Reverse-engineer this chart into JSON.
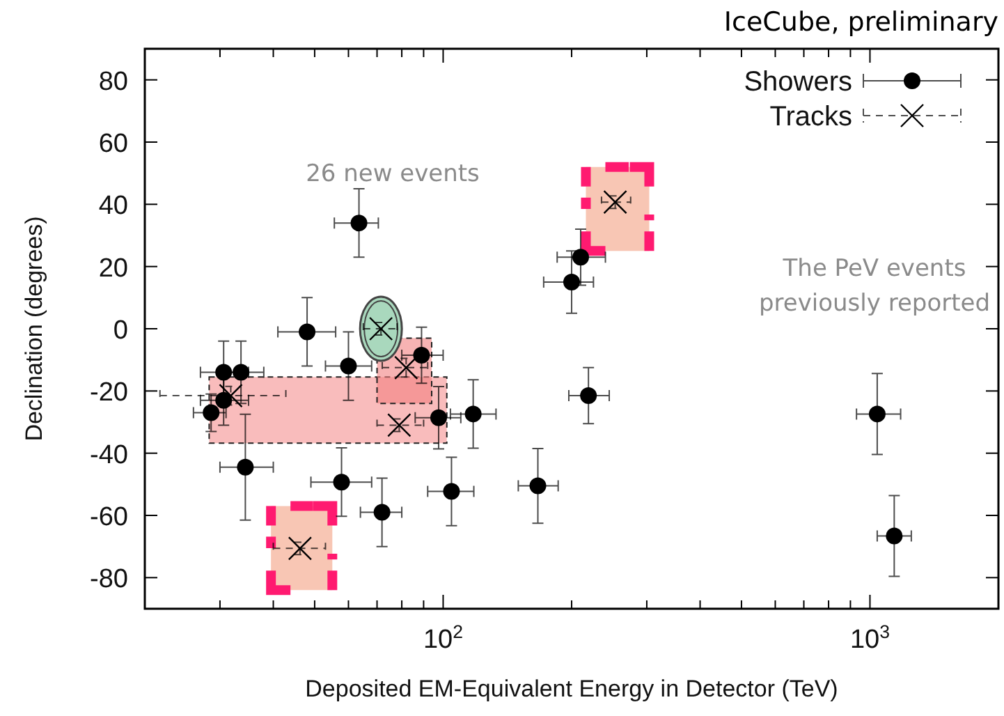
{
  "chart_data": {
    "type": "scatter",
    "xlabel": "Deposited EM-Equivalent Energy in Detector (TeV)",
    "ylabel": "Declination (degrees)",
    "log": "x",
    "xlim": [
      20,
      2000
    ],
    "ylim": [
      -90,
      90
    ],
    "xticks": [
      {
        "value": 20,
        "label": null
      },
      {
        "value": 30,
        "label": null
      },
      {
        "value": 40,
        "label": null
      },
      {
        "value": 50,
        "label": null
      },
      {
        "value": 60,
        "label": null
      },
      {
        "value": 70,
        "label": null
      },
      {
        "value": 80,
        "label": null
      },
      {
        "value": 90,
        "label": null
      },
      {
        "value": 100,
        "label": "10$^{2}$"
      },
      {
        "value": 200,
        "label": null
      },
      {
        "value": 300,
        "label": null
      },
      {
        "value": 400,
        "label": null
      },
      {
        "value": 500,
        "label": null
      },
      {
        "value": 600,
        "label": null
      },
      {
        "value": 700,
        "label": null
      },
      {
        "value": 800,
        "label": null
      },
      {
        "value": 900,
        "label": null
      },
      {
        "value": 1000,
        "label": "10$^{3}$"
      },
      {
        "value": 2000,
        "label": null
      }
    ],
    "yticks": [
      -80,
      -60,
      -40,
      -20,
      0,
      20,
      40,
      60,
      80
    ],
    "grid": false,
    "legend": "top right",
    "annotations": [
      "26 new events",
      "The PeV events previously reported",
      "IceCube, preliminary"
    ],
    "series": [
      {
        "name": "Showers",
        "color": "#000000",
        "marker": "circle",
        "line_style": "solid",
        "x": [
          63.5,
          48,
          210,
          200,
          60,
          89,
          30.6,
          33.6,
          30.6,
          28.6,
          97.6,
          117.6,
          34.4,
          57.8,
          71.9,
          104.6,
          166.7,
          219,
          1040,
          1140
        ],
        "values": [
          34,
          -1,
          23,
          15,
          -12,
          -8.5,
          -14,
          -14,
          -23,
          -27,
          -28.6,
          -27.4,
          -44.5,
          -49.3,
          -59,
          -52.3,
          -50.5,
          -21.5,
          -27.4,
          -66.6
        ],
        "errors": [
          11,
          11,
          9,
          10,
          11,
          9,
          10,
          10,
          8,
          6,
          10,
          11,
          17,
          11,
          11,
          11,
          12,
          9,
          13,
          13
        ],
        "xerrors": [
          [
            55.6,
            70.5
          ],
          [
            41,
            56
          ],
          [
            185,
            240
          ],
          [
            172,
            225
          ],
          [
            53,
            68
          ],
          [
            80,
            100
          ],
          [
            27,
            35
          ],
          [
            30,
            38
          ],
          [
            27,
            35
          ],
          [
            26,
            31
          ],
          [
            86,
            110
          ],
          [
            104,
            133
          ],
          [
            30,
            40
          ],
          [
            49,
            68
          ],
          [
            64,
            80
          ],
          [
            92,
            118
          ],
          [
            150,
            186
          ],
          [
            197,
            245
          ],
          [
            930,
            1180
          ],
          [
            1040,
            1250
          ]
        ]
      },
      {
        "name": "Tracks",
        "color": "#000000",
        "marker": "cross",
        "line_style": "dashed",
        "x": [
          71.5,
          31.8,
          81.9,
          78.9,
          46.2,
          253
        ],
        "values": [
          0,
          -21.5,
          -12.5,
          -31,
          -70.6,
          40.7
        ],
        "errors": [
          2,
          3,
          3,
          2,
          2,
          2
        ],
        "xerrors": [
          [
            65,
            78
          ],
          [
            21.7,
            42.8
          ],
          [
            72,
            92
          ],
          [
            70,
            90
          ],
          [
            40,
            53
          ],
          [
            235,
            275
          ]
        ]
      }
    ]
  }
}
